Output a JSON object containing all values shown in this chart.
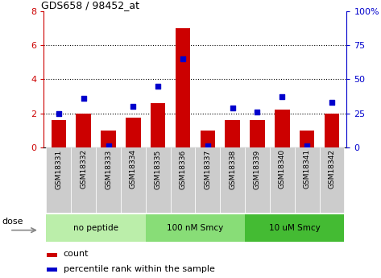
{
  "title": "GDS658 / 98452_at",
  "samples": [
    "GSM18331",
    "GSM18332",
    "GSM18333",
    "GSM18334",
    "GSM18335",
    "GSM18336",
    "GSM18337",
    "GSM18338",
    "GSM18339",
    "GSM18340",
    "GSM18341",
    "GSM18342"
  ],
  "bar_values": [
    1.6,
    2.0,
    1.0,
    1.75,
    2.6,
    7.0,
    1.0,
    1.6,
    1.6,
    2.2,
    1.0,
    2.0
  ],
  "scatter_values": [
    25.0,
    36.0,
    1.0,
    30.0,
    45.0,
    65.0,
    1.0,
    29.0,
    26.0,
    37.0,
    1.0,
    33.0
  ],
  "bar_color": "#CC0000",
  "scatter_color": "#0000CC",
  "ylim_left": [
    0,
    8
  ],
  "ylim_right": [
    0,
    100
  ],
  "yticks_left": [
    0,
    2,
    4,
    6,
    8
  ],
  "ytick_labels_right": [
    "0",
    "25",
    "50",
    "75",
    "100%"
  ],
  "groups": [
    {
      "label": "no peptide",
      "start": 0,
      "end": 4,
      "color": "#bbeeaa"
    },
    {
      "label": "100 nM Smcy",
      "start": 4,
      "end": 8,
      "color": "#88dd77"
    },
    {
      "label": "10 uM Smcy",
      "start": 8,
      "end": 12,
      "color": "#44bb33"
    }
  ],
  "dose_label": "dose",
  "legend_items": [
    {
      "label": "count",
      "color": "#CC0000"
    },
    {
      "label": "percentile rank within the sample",
      "color": "#0000CC"
    }
  ],
  "bg_color": "#ffffff",
  "tick_bg": "#cccccc",
  "bar_width": 0.6
}
